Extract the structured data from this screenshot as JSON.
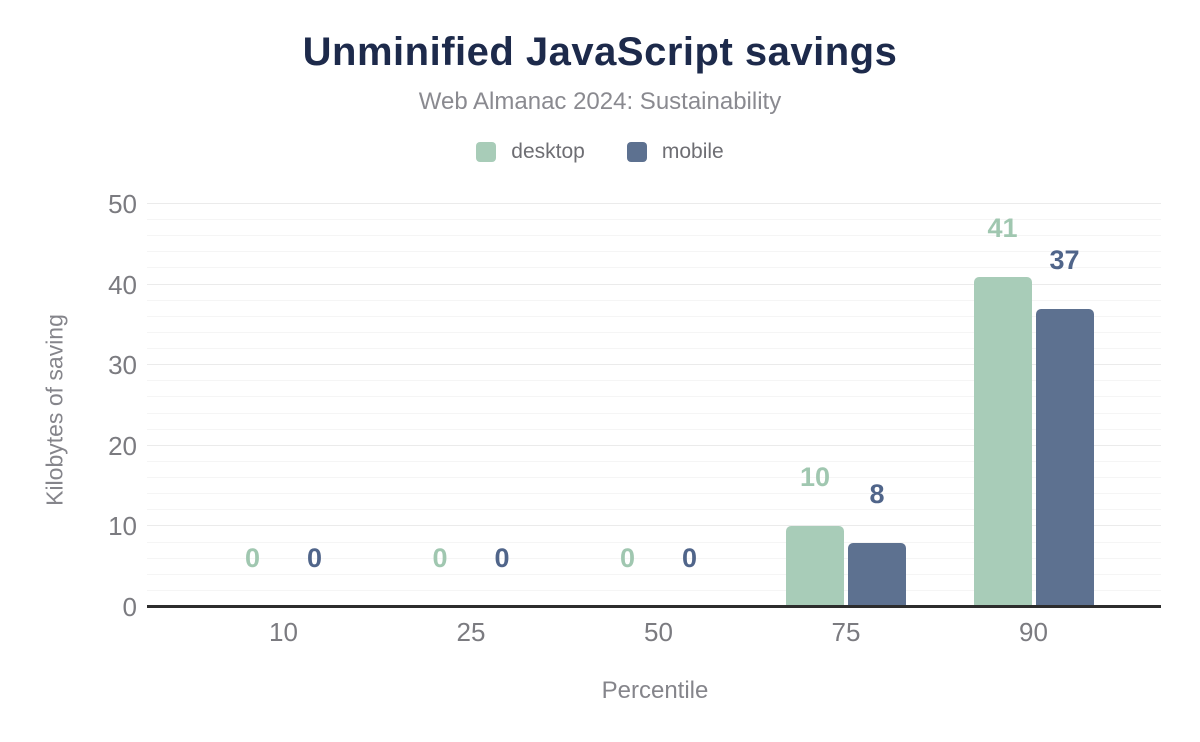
{
  "header": {
    "title": "Unminified JavaScript savings",
    "subtitle": "Web Almanac 2024: Sustainability"
  },
  "chart_data": {
    "type": "bar",
    "title": "Unminified JavaScript savings",
    "subtitle": "Web Almanac 2024: Sustainability",
    "categories": [
      "10",
      "25",
      "50",
      "75",
      "90"
    ],
    "series": [
      {
        "name": "desktop",
        "values": [
          0,
          0,
          0,
          10,
          41
        ],
        "color": "#a8ccb8",
        "label_color": "#a0c7b0"
      },
      {
        "name": "mobile",
        "values": [
          0,
          0,
          0,
          8,
          37
        ],
        "color": "#5d7190",
        "label_color": "#50658a"
      }
    ],
    "xlabel": "Percentile",
    "ylabel": "Kilobytes of saving",
    "ylim": [
      0,
      50
    ],
    "yticks": [
      0,
      10,
      20,
      30,
      40,
      50
    ],
    "y_major_step": 10,
    "y_minor_step": 2,
    "grid": true,
    "legend_position": "top",
    "bar_value_labels": true
  },
  "colors": {
    "title": "#1d2a4b",
    "subtitle": "#8a8a90",
    "axis_text": "#7b7b80",
    "axis_title_text": "#85858b",
    "axis_line": "#2d2d2d",
    "grid_major": "#ebebeb",
    "grid_minor": "#f5f5f5",
    "background": "#ffffff"
  }
}
